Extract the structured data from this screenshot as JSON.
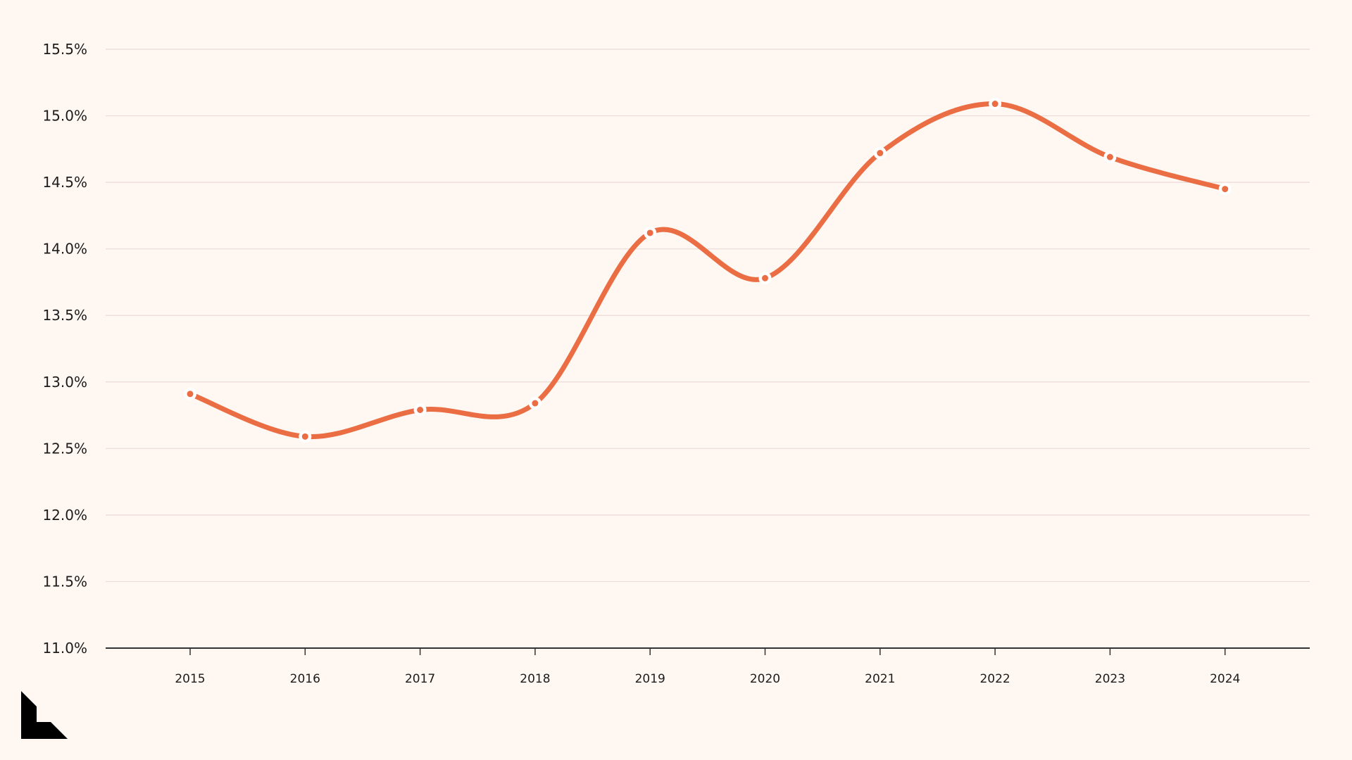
{
  "chart_data": {
    "type": "line",
    "title": "",
    "xlabel": "",
    "ylabel": "",
    "x": [
      "2015",
      "2016",
      "2017",
      "2018",
      "2019",
      "2020",
      "2021",
      "2022",
      "2023",
      "2024"
    ],
    "y_tick_labels": [
      "11.0%",
      "11.5%",
      "12.0%",
      "12.5%",
      "13.0%",
      "13.5%",
      "14.0%",
      "14.5%",
      "15.0%",
      "15.5%"
    ],
    "y_ticks": [
      11.0,
      11.5,
      12.0,
      12.5,
      13.0,
      13.5,
      14.0,
      14.5,
      15.0,
      15.5
    ],
    "ylim": [
      11.0,
      15.5
    ],
    "series": [
      {
        "values": [
          12.91,
          12.59,
          12.79,
          12.84,
          14.12,
          13.78,
          14.72,
          15.09,
          14.69,
          14.45
        ]
      }
    ],
    "grid": true,
    "legend": "none",
    "colors": {
      "line": "#EA6D44",
      "grid": "#EBDAD6",
      "axis": "#333333",
      "background": "#FFF7F1",
      "marker_ring": "#FFFFFF"
    }
  },
  "logo": {
    "icon": "brand-logo-icon",
    "color": "#000000"
  }
}
